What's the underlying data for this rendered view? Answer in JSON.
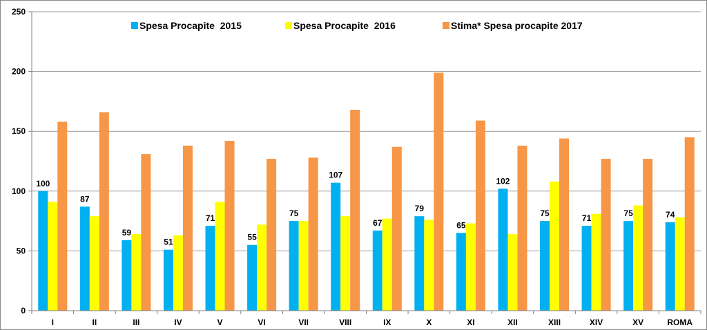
{
  "chart_data": {
    "type": "bar",
    "title": "",
    "xlabel": "",
    "ylabel": "",
    "ylim": [
      0,
      250
    ],
    "yticks": [
      0,
      50,
      100,
      150,
      200,
      250
    ],
    "grid": true,
    "legend_position": "top",
    "categories": [
      "I",
      "II",
      "III",
      "IV",
      "V",
      "VI",
      "VII",
      "VIII",
      "IX",
      "X",
      "XI",
      "XII",
      "XIII",
      "XIV",
      "XV",
      "ROMA"
    ],
    "series": [
      {
        "name": "Spesa Procapite  2015",
        "color": "#00b0f0",
        "values": [
          100,
          87,
          59,
          51,
          71,
          55,
          75,
          107,
          67,
          79,
          65,
          102,
          75,
          71,
          75,
          74
        ],
        "show_labels": true
      },
      {
        "name": "Spesa Procapite  2016",
        "color": "#ffff00",
        "values": [
          91,
          79,
          64,
          63,
          91,
          72,
          75,
          79,
          77,
          76,
          73,
          64,
          108,
          81,
          88,
          78
        ],
        "show_labels": false
      },
      {
        "name": "Stima* Spesa procapite 2017",
        "color": "#f79646",
        "values": [
          158,
          166,
          131,
          138,
          142,
          127,
          128,
          168,
          137,
          199,
          159,
          138,
          144,
          127,
          127,
          145
        ],
        "show_labels": false
      }
    ]
  }
}
